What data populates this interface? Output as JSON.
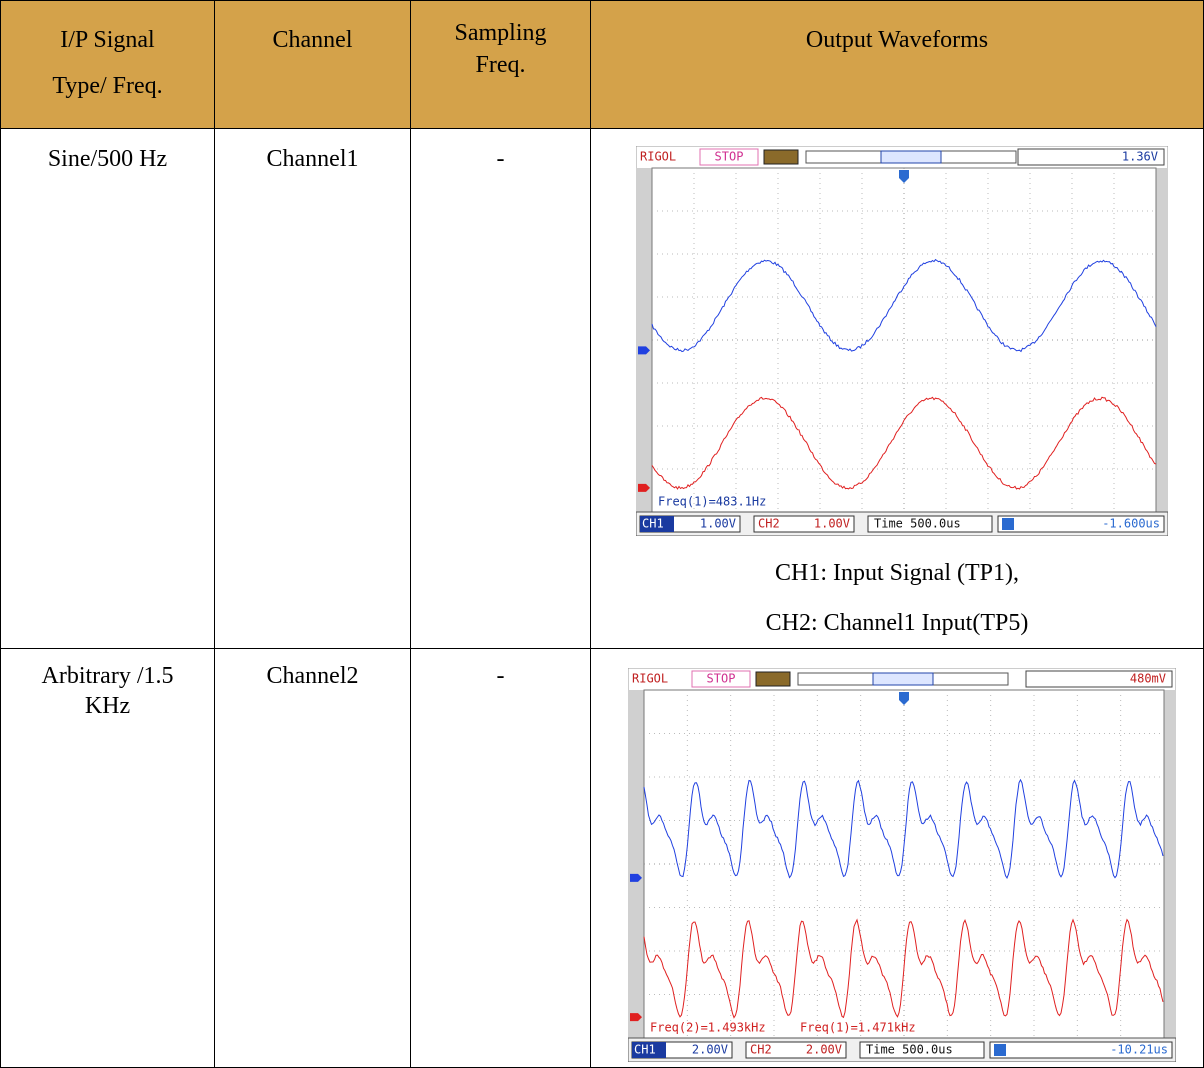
{
  "table": {
    "header": [
      [
        "I/P Signal",
        "Type/ Freq."
      ],
      [
        "Channel"
      ],
      [
        "Sampling",
        "Freq."
      ],
      [
        "Output Waveforms"
      ]
    ],
    "rows": [
      {
        "signal": [
          "Sine/500 Hz"
        ],
        "channel": "Channel1",
        "sampling": "-",
        "scope": {
          "brand": "RIGOL",
          "state": "STOP",
          "trigger_level": "1.36V",
          "measurements": [
            "Freq(1)=483.1Hz"
          ],
          "ch1_label": "CH1",
          "ch1_scale": "1.00V",
          "ch2_label": "CH2",
          "ch2_scale": "1.00V",
          "timebase": "Time 500.0us",
          "trigger_offset": "-1.600us"
        },
        "caption": [
          "CH1: Input Signal (TP1),",
          "CH2:  Channel1 Input(TP5)"
        ]
      },
      {
        "signal": [
          "Arbitrary /1.5",
          "KHz"
        ],
        "channel": "Channel2",
        "sampling": "-",
        "scope": {
          "brand": "RIGOL",
          "state": "STOP",
          "trigger_level": "480mV",
          "measurements": [
            "Freq(2)=1.493kHz",
            "Freq(1)=1.471kHz"
          ],
          "ch1_label": "CH1",
          "ch1_scale": "2.00V",
          "ch2_label": "CH2",
          "ch2_scale": "2.00V",
          "timebase": "Time 500.0us",
          "trigger_offset": "-10.21us"
        }
      }
    ]
  }
}
